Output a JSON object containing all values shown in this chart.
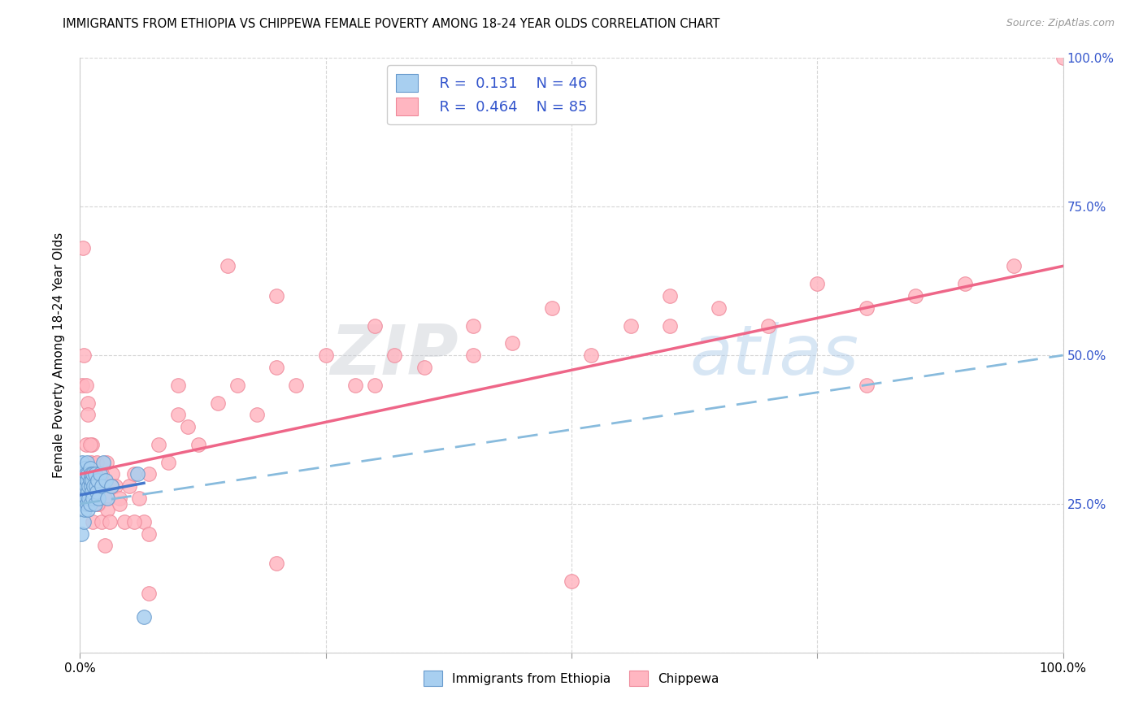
{
  "title": "IMMIGRANTS FROM ETHIOPIA VS CHIPPEWA FEMALE POVERTY AMONG 18-24 YEAR OLDS CORRELATION CHART",
  "source": "Source: ZipAtlas.com",
  "ylabel": "Female Poverty Among 18-24 Year Olds",
  "legend_label1": "Immigrants from Ethiopia",
  "legend_label2": "Chippewa",
  "R1": "0.131",
  "N1": "46",
  "R2": "0.464",
  "N2": "85",
  "color_eth_face": "#a8cff0",
  "color_eth_edge": "#6699cc",
  "color_chip_face": "#ffb6c1",
  "color_chip_edge": "#ee8899",
  "line_color_blue_solid": "#4477cc",
  "line_color_blue_dash": "#88bbdd",
  "line_color_pink": "#ee6688",
  "watermark": "ZIPatlas",
  "background_color": "#ffffff",
  "eth_x": [
    0.001,
    0.002,
    0.002,
    0.003,
    0.003,
    0.003,
    0.004,
    0.004,
    0.005,
    0.005,
    0.005,
    0.006,
    0.006,
    0.006,
    0.007,
    0.007,
    0.007,
    0.008,
    0.008,
    0.008,
    0.009,
    0.009,
    0.01,
    0.01,
    0.01,
    0.011,
    0.011,
    0.012,
    0.012,
    0.013,
    0.013,
    0.014,
    0.015,
    0.015,
    0.016,
    0.017,
    0.018,
    0.019,
    0.02,
    0.022,
    0.024,
    0.026,
    0.028,
    0.032,
    0.058,
    0.065
  ],
  "eth_y": [
    0.2,
    0.28,
    0.32,
    0.25,
    0.3,
    0.27,
    0.22,
    0.28,
    0.24,
    0.29,
    0.31,
    0.26,
    0.3,
    0.28,
    0.25,
    0.29,
    0.32,
    0.27,
    0.3,
    0.24,
    0.26,
    0.28,
    0.29,
    0.25,
    0.31,
    0.28,
    0.3,
    0.27,
    0.29,
    0.26,
    0.3,
    0.28,
    0.3,
    0.25,
    0.28,
    0.27,
    0.29,
    0.26,
    0.3,
    0.28,
    0.32,
    0.29,
    0.26,
    0.28,
    0.3,
    0.06
  ],
  "chip_x": [
    0.002,
    0.003,
    0.005,
    0.006,
    0.007,
    0.008,
    0.009,
    0.01,
    0.011,
    0.012,
    0.013,
    0.014,
    0.015,
    0.016,
    0.017,
    0.018,
    0.019,
    0.02,
    0.021,
    0.022,
    0.025,
    0.028,
    0.03,
    0.033,
    0.036,
    0.04,
    0.045,
    0.05,
    0.055,
    0.06,
    0.065,
    0.07,
    0.08,
    0.09,
    0.1,
    0.11,
    0.12,
    0.14,
    0.16,
    0.18,
    0.2,
    0.22,
    0.25,
    0.28,
    0.3,
    0.32,
    0.35,
    0.4,
    0.44,
    0.48,
    0.52,
    0.56,
    0.6,
    0.65,
    0.7,
    0.75,
    0.8,
    0.85,
    0.9,
    0.95,
    0.004,
    0.006,
    0.008,
    0.01,
    0.012,
    0.015,
    0.018,
    0.022,
    0.027,
    0.032,
    0.04,
    0.055,
    0.07,
    0.1,
    0.15,
    0.2,
    0.3,
    0.4,
    0.6,
    0.8,
    1.0,
    0.025,
    0.07,
    0.2,
    0.5
  ],
  "chip_y": [
    0.45,
    0.68,
    0.3,
    0.35,
    0.28,
    0.42,
    0.25,
    0.28,
    0.32,
    0.35,
    0.22,
    0.3,
    0.28,
    0.26,
    0.32,
    0.3,
    0.25,
    0.3,
    0.28,
    0.22,
    0.26,
    0.24,
    0.22,
    0.3,
    0.28,
    0.26,
    0.22,
    0.28,
    0.3,
    0.26,
    0.22,
    0.3,
    0.35,
    0.32,
    0.4,
    0.38,
    0.35,
    0.42,
    0.45,
    0.4,
    0.48,
    0.45,
    0.5,
    0.45,
    0.55,
    0.5,
    0.48,
    0.55,
    0.52,
    0.58,
    0.5,
    0.55,
    0.6,
    0.58,
    0.55,
    0.62,
    0.58,
    0.6,
    0.62,
    0.65,
    0.5,
    0.45,
    0.4,
    0.35,
    0.3,
    0.28,
    0.25,
    0.3,
    0.32,
    0.28,
    0.25,
    0.22,
    0.2,
    0.45,
    0.65,
    0.6,
    0.45,
    0.5,
    0.55,
    0.45,
    1.0,
    0.18,
    0.1,
    0.15,
    0.12
  ],
  "pink_line_x0": 0.0,
  "pink_line_y0": 0.3,
  "pink_line_x1": 1.0,
  "pink_line_y1": 0.65,
  "dash_line_x0": 0.0,
  "dash_line_y0": 0.25,
  "dash_line_x1": 1.0,
  "dash_line_y1": 0.5,
  "blue_line_x0": 0.0,
  "blue_line_y0": 0.265,
  "blue_line_x1": 0.065,
  "blue_line_y1": 0.285,
  "xlim": [
    0.0,
    1.0
  ],
  "ylim": [
    0.0,
    1.0
  ]
}
